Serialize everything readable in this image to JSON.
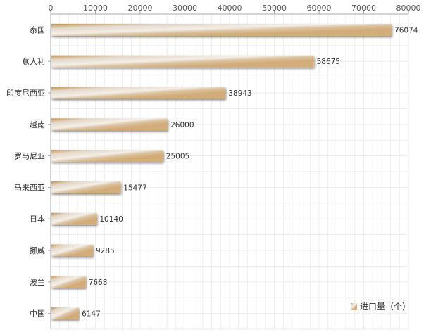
{
  "chart_data": {
    "type": "bar",
    "orientation": "horizontal",
    "categories": [
      "泰国",
      "意大利",
      "印度尼西亚",
      "越南",
      "罗马尼亚",
      "马来西亚",
      "日本",
      "挪威",
      "波兰",
      "中国"
    ],
    "series": [
      {
        "name": "进口量（个）",
        "values": [
          76074,
          58675,
          38943,
          26000,
          25005,
          15477,
          10140,
          9285,
          7668,
          6147
        ]
      }
    ],
    "xlim": [
      0,
      80000
    ],
    "xticks": [
      0,
      10000,
      20000,
      30000,
      40000,
      50000,
      60000,
      70000,
      80000
    ],
    "xaxis_position": "top",
    "grid": true,
    "legend_position": "bottom-right",
    "data_labels": true
  },
  "colors": {
    "bar_dark": "#c4914a",
    "bar_light": "#f3ede3",
    "bar_mid": "#d4b07e",
    "grid": "#eeeeee",
    "axis": "#aaaaaa"
  }
}
